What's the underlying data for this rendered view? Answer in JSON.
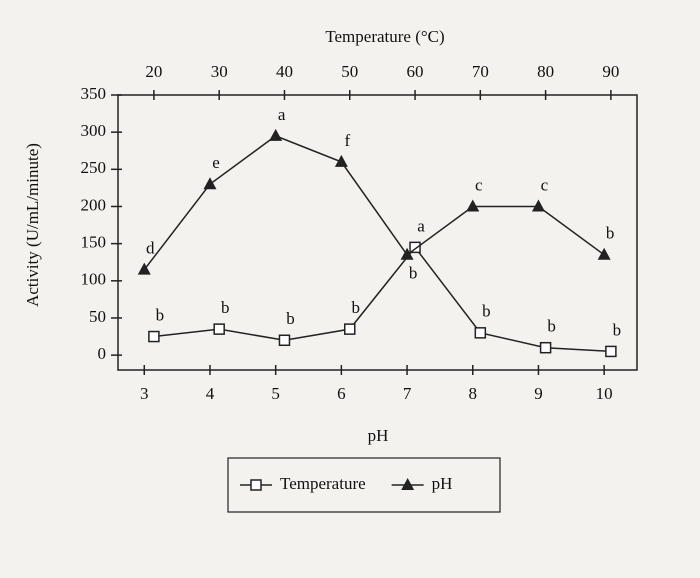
{
  "chart_data": {
    "type": "line",
    "title": "Temperature (°C)",
    "xlabel": "pH",
    "ylabel": "Activity (U/mL/minute)",
    "xlim": [
      2.6,
      10.5
    ],
    "xticks": [
      3,
      4,
      5,
      6,
      7,
      8,
      9,
      10
    ],
    "x2lim": [
      14.5,
      94
    ],
    "x2ticks": [
      20,
      30,
      40,
      50,
      60,
      70,
      80,
      90
    ],
    "ylim": [
      -20,
      350
    ],
    "yticks": [
      0,
      50,
      100,
      150,
      200,
      250,
      300,
      350
    ],
    "legend": "bottom",
    "series": [
      {
        "name": "Temperature",
        "axis": "x2",
        "marker": "square",
        "color": "#222222",
        "x": [
          20,
          30,
          40,
          50,
          60,
          70,
          80,
          90
        ],
        "values": [
          25,
          35,
          20,
          35,
          145,
          30,
          10,
          5
        ],
        "labels": [
          "b",
          "b",
          "b",
          "b",
          "a",
          "b",
          "b",
          "b"
        ]
      },
      {
        "name": "pH",
        "marker": "triangle",
        "color": "#222222",
        "x": [
          3,
          4,
          5,
          6,
          7,
          8,
          9,
          10
        ],
        "values": [
          115,
          230,
          295,
          260,
          135,
          200,
          200,
          135
        ],
        "labels": [
          "d",
          "e",
          "a",
          "f",
          "b",
          "c",
          "c",
          "b"
        ]
      }
    ]
  }
}
